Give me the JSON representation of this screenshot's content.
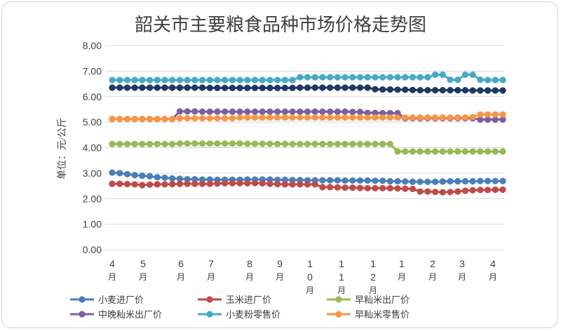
{
  "chart_data": {
    "type": "line",
    "title": "韶关市主要粮食品种市场价格走势图",
    "ylabel": "单位：元/公斤",
    "xlabel": "",
    "ylim": [
      0,
      8
    ],
    "yticks": [
      "0.00",
      "1.00",
      "2.00",
      "3.00",
      "4.00",
      "5.00",
      "6.00",
      "7.00",
      "8.00"
    ],
    "xtick_labels": [
      {
        "num": "4",
        "unit": "月"
      },
      {
        "num": "5",
        "unit": "月"
      },
      {
        "num": "6",
        "unit": "月"
      },
      {
        "num": "7",
        "unit": "月"
      },
      {
        "num": "8",
        "unit": "月"
      },
      {
        "num": "9",
        "unit": "月"
      },
      {
        "num": "10",
        "unit": "月"
      },
      {
        "num": "11",
        "unit": "月"
      },
      {
        "num": "12",
        "unit": "月"
      },
      {
        "num": "1",
        "unit": "月"
      },
      {
        "num": "2",
        "unit": "月"
      },
      {
        "num": "3",
        "unit": "月"
      },
      {
        "num": "4",
        "unit": "月"
      }
    ],
    "grid": true,
    "legend_position": "bottom",
    "series": [
      {
        "name": "小麦进厂价",
        "color": "#4A7EBB",
        "values": [
          3.02,
          3.0,
          2.96,
          2.92,
          2.9,
          2.88,
          2.84,
          2.82,
          2.79,
          2.78,
          2.76,
          2.76,
          2.75,
          2.75,
          2.74,
          2.74,
          2.74,
          2.74,
          2.75,
          2.75,
          2.75,
          2.75,
          2.74,
          2.74,
          2.73,
          2.73,
          2.72,
          2.72,
          2.72,
          2.72,
          2.72,
          2.71,
          2.71,
          2.71,
          2.71,
          2.7,
          2.7,
          2.68,
          2.68,
          2.67,
          2.66,
          2.66,
          2.66,
          2.66,
          2.67,
          2.68,
          2.68,
          2.68,
          2.68,
          2.69,
          2.69,
          2.69,
          2.69
        ]
      },
      {
        "name": "玉米进厂价",
        "color": "#BE4B48",
        "values": [
          2.58,
          2.58,
          2.57,
          2.56,
          2.53,
          2.55,
          2.56,
          2.56,
          2.57,
          2.58,
          2.58,
          2.58,
          2.58,
          2.58,
          2.59,
          2.6,
          2.6,
          2.6,
          2.6,
          2.61,
          2.6,
          2.58,
          2.57,
          2.56,
          2.56,
          2.56,
          2.56,
          2.56,
          2.45,
          2.45,
          2.44,
          2.43,
          2.43,
          2.42,
          2.41,
          2.41,
          2.41,
          2.41,
          2.4,
          2.39,
          2.38,
          2.28,
          2.28,
          2.26,
          2.25,
          2.26,
          2.28,
          2.31,
          2.33,
          2.34,
          2.34,
          2.35,
          2.35
        ]
      },
      {
        "name": "早籼米出厂价",
        "color": "#98B954",
        "values": [
          4.14,
          4.14,
          4.14,
          4.14,
          4.14,
          4.14,
          4.14,
          4.14,
          4.14,
          4.16,
          4.16,
          4.16,
          4.16,
          4.16,
          4.16,
          4.16,
          4.16,
          4.16,
          4.15,
          4.15,
          4.15,
          4.15,
          4.14,
          4.14,
          4.14,
          4.14,
          4.14,
          4.14,
          4.14,
          4.14,
          4.14,
          4.14,
          4.14,
          4.14,
          4.14,
          4.14,
          4.14,
          4.14,
          3.85,
          3.85,
          3.85,
          3.85,
          3.85,
          3.85,
          3.85,
          3.85,
          3.85,
          3.85,
          3.85,
          3.85,
          3.85,
          3.85,
          3.85
        ]
      },
      {
        "name": "中晚籼米出厂价",
        "color": "#7D5FA0",
        "values": [
          5.12,
          5.12,
          5.12,
          5.12,
          5.12,
          5.12,
          5.12,
          5.12,
          5.12,
          5.42,
          5.42,
          5.42,
          5.41,
          5.41,
          5.41,
          5.41,
          5.41,
          5.41,
          5.41,
          5.41,
          5.41,
          5.41,
          5.41,
          5.41,
          5.41,
          5.41,
          5.41,
          5.41,
          5.41,
          5.41,
          5.41,
          5.41,
          5.4,
          5.4,
          5.36,
          5.36,
          5.35,
          5.35,
          5.35,
          5.15,
          5.15,
          5.15,
          5.15,
          5.15,
          5.15,
          5.15,
          5.15,
          5.15,
          5.15,
          5.1,
          5.1,
          5.1,
          5.1
        ]
      },
      {
        "name": "小麦粉零售价",
        "color": "#46AAC5",
        "values": [
          6.65,
          6.65,
          6.65,
          6.65,
          6.65,
          6.65,
          6.65,
          6.65,
          6.65,
          6.65,
          6.65,
          6.65,
          6.65,
          6.65,
          6.65,
          6.65,
          6.65,
          6.65,
          6.65,
          6.65,
          6.65,
          6.65,
          6.65,
          6.65,
          6.65,
          6.76,
          6.76,
          6.76,
          6.76,
          6.76,
          6.76,
          6.76,
          6.76,
          6.76,
          6.76,
          6.76,
          6.76,
          6.76,
          6.76,
          6.76,
          6.76,
          6.76,
          6.76,
          6.86,
          6.86,
          6.66,
          6.66,
          6.86,
          6.86,
          6.66,
          6.65,
          6.65,
          6.65
        ]
      },
      {
        "name": "早籼米零售价",
        "color": "#F79646",
        "values": [
          5.12,
          5.12,
          5.12,
          5.12,
          5.12,
          5.12,
          5.12,
          5.12,
          5.12,
          5.15,
          5.15,
          5.15,
          5.15,
          5.15,
          5.15,
          5.15,
          5.15,
          5.18,
          5.18,
          5.18,
          5.18,
          5.18,
          5.18,
          5.18,
          5.18,
          5.18,
          5.18,
          5.18,
          5.18,
          5.18,
          5.18,
          5.18,
          5.18,
          5.18,
          5.18,
          5.18,
          5.18,
          5.18,
          5.18,
          5.18,
          5.18,
          5.18,
          5.18,
          5.18,
          5.18,
          5.18,
          5.18,
          5.18,
          5.2,
          5.3,
          5.3,
          5.3,
          5.3
        ]
      },
      {
        "name": "",
        "color": "#1F3864",
        "values": [
          6.35,
          6.35,
          6.35,
          6.35,
          6.35,
          6.35,
          6.35,
          6.35,
          6.35,
          6.35,
          6.35,
          6.35,
          6.35,
          6.34,
          6.34,
          6.34,
          6.34,
          6.34,
          6.34,
          6.34,
          6.34,
          6.34,
          6.34,
          6.34,
          6.34,
          6.35,
          6.35,
          6.35,
          6.35,
          6.35,
          6.35,
          6.35,
          6.35,
          6.35,
          6.35,
          6.29,
          6.28,
          6.28,
          6.27,
          6.27,
          6.26,
          6.25,
          6.25,
          6.25,
          6.25,
          6.25,
          6.25,
          6.25,
          6.24,
          6.24,
          6.24,
          6.24,
          6.24
        ]
      }
    ]
  }
}
